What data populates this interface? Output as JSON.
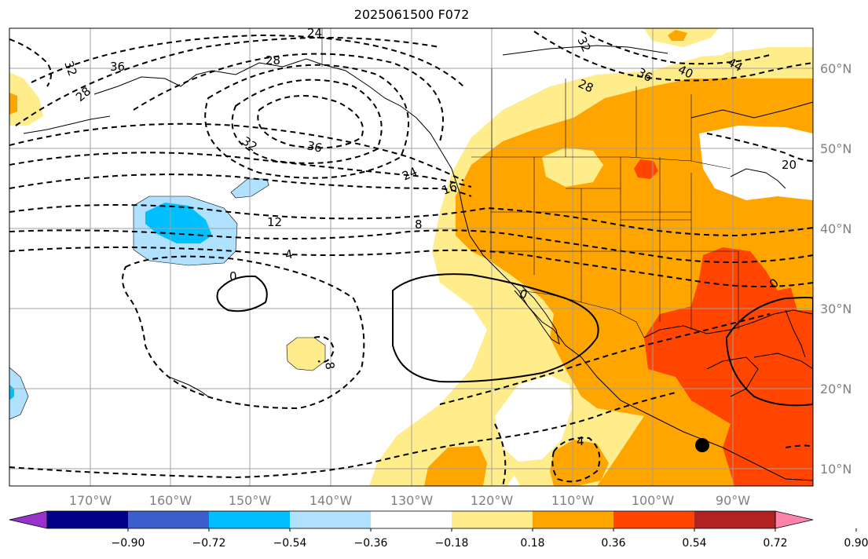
{
  "title": "2025061500 F072",
  "lon_ticks": [
    "170°W",
    "160°W",
    "150°W",
    "140°W",
    "130°W",
    "120°W",
    "110°W",
    "100°W",
    "90°W"
  ],
  "lat_ticks": [
    "60°N",
    "50°N",
    "40°N",
    "30°N",
    "20°N",
    "10°N"
  ],
  "colorbar": {
    "colors": [
      "#9932cc",
      "#00008b",
      "#3a5fcd",
      "#00bfff",
      "#b0e2ff",
      "#ffffff",
      "#ffec8b",
      "#ffa500",
      "#ff4500",
      "#b22222",
      "#ff82ab"
    ],
    "tick_labels": [
      "−0.90",
      "−0.72",
      "−0.54",
      "−0.36",
      "−0.18",
      "0.18",
      "0.36",
      "0.54",
      "0.72",
      "0.90"
    ]
  },
  "contour_labels": [
    "24",
    "28",
    "32",
    "36",
    "32",
    "28",
    "36",
    "40",
    "44",
    "28",
    "32",
    "36",
    "24",
    "16",
    "12",
    "8",
    "4",
    "0",
    "8",
    "0",
    "4",
    "0",
    "20",
    "-28",
    "-32"
  ]
}
